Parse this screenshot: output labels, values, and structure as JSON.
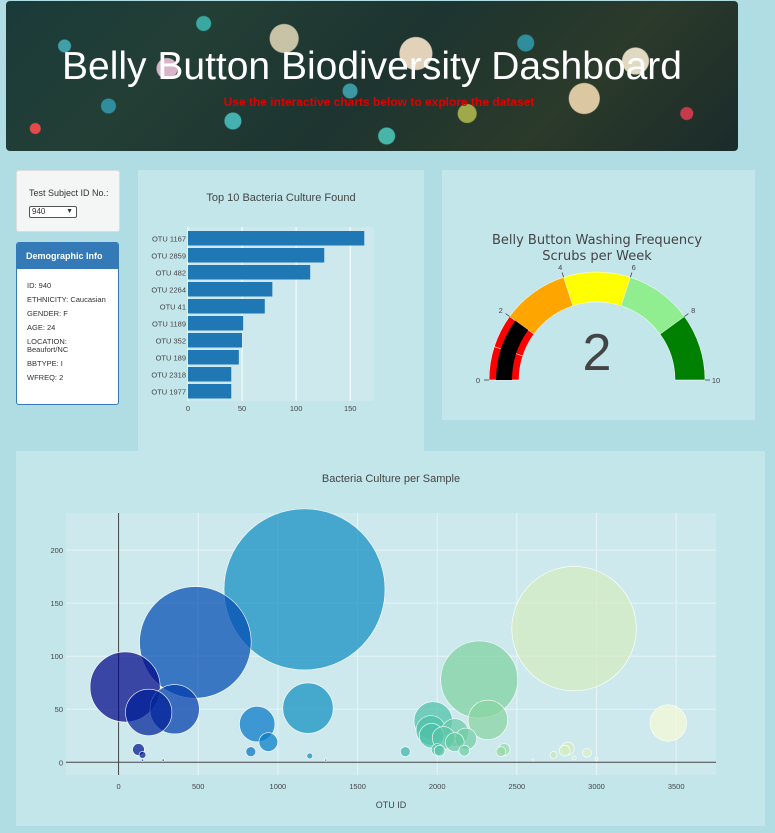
{
  "header": {
    "title": "Belly Button Biodiversity Dashboard",
    "subtitle": "Use the interactive charts below to explore the dataset"
  },
  "selector": {
    "label": "Test Subject ID No.:",
    "value": "940"
  },
  "demographic": {
    "heading": "Demographic Info",
    "lines": [
      "ID: 940",
      "ETHNICITY: Caucasian",
      "GENDER: F",
      "AGE: 24",
      "LOCATION: Beaufort/NC",
      "BBTYPE: I",
      "WFREQ: 2"
    ]
  },
  "chart_data": [
    {
      "type": "bar",
      "orientation": "horizontal",
      "title": "Top 10 Bacteria Culture Found",
      "categories": [
        "OTU 1167",
        "OTU 2859",
        "OTU 482",
        "OTU 2264",
        "OTU 41",
        "OTU 1189",
        "OTU 352",
        "OTU 189",
        "OTU 2318",
        "OTU 1977"
      ],
      "values": [
        163,
        126,
        113,
        78,
        71,
        51,
        50,
        47,
        40,
        40
      ],
      "xlim": [
        0,
        172
      ],
      "xticks": [
        0,
        50,
        100,
        150
      ],
      "color": "#1f77b4",
      "grid": true
    },
    {
      "type": "gauge",
      "title": "Belly Button Washing Frequency",
      "subtitle": "Scrubs per Week",
      "value": 2,
      "range": [
        0,
        10
      ],
      "ticks": [
        0,
        2,
        4,
        6,
        8,
        10
      ],
      "steps": [
        {
          "range": [
            0,
            1
          ],
          "color": "#ff0000"
        },
        {
          "range": [
            1,
            2
          ],
          "color": "#ff0000"
        },
        {
          "range": [
            2,
            4
          ],
          "color": "#ffa500"
        },
        {
          "range": [
            4,
            6
          ],
          "color": "#ffff00"
        },
        {
          "range": [
            6,
            8
          ],
          "color": "#90ee90"
        },
        {
          "range": [
            8,
            10
          ],
          "color": "#008000"
        }
      ],
      "bar_color": "#000000"
    },
    {
      "type": "scatter",
      "variant": "bubble",
      "title": "Bacteria Culture per Sample",
      "xlabel": "OTU ID",
      "ylabel": "",
      "xlim": [
        -330,
        3750
      ],
      "ylim": [
        -12,
        235
      ],
      "xticks": [
        0,
        500,
        1000,
        1500,
        2000,
        2500,
        3000,
        3500
      ],
      "yticks": [
        0,
        50,
        100,
        150,
        200
      ],
      "colorscale": "Earth",
      "points": [
        {
          "x": 41,
          "y": 71
        },
        {
          "x": 189,
          "y": 47
        },
        {
          "x": 352,
          "y": 50
        },
        {
          "x": 482,
          "y": 113
        },
        {
          "x": 870,
          "y": 36
        },
        {
          "x": 940,
          "y": 19
        },
        {
          "x": 1167,
          "y": 163
        },
        {
          "x": 1189,
          "y": 51
        },
        {
          "x": 1975,
          "y": 39
        },
        {
          "x": 1960,
          "y": 30
        },
        {
          "x": 1965,
          "y": 25
        },
        {
          "x": 2040,
          "y": 23
        },
        {
          "x": 2110,
          "y": 28
        },
        {
          "x": 2110,
          "y": 19
        },
        {
          "x": 2180,
          "y": 22
        },
        {
          "x": 2264,
          "y": 78
        },
        {
          "x": 2318,
          "y": 40
        },
        {
          "x": 2859,
          "y": 126
        },
        {
          "x": 3450,
          "y": 37
        },
        {
          "x": 125,
          "y": 12
        },
        {
          "x": 150,
          "y": 7
        },
        {
          "x": 830,
          "y": 10
        },
        {
          "x": 1200,
          "y": 6
        },
        {
          "x": 1800,
          "y": 10
        },
        {
          "x": 2000,
          "y": 12
        },
        {
          "x": 2015,
          "y": 11
        },
        {
          "x": 2170,
          "y": 11
        },
        {
          "x": 2420,
          "y": 12
        },
        {
          "x": 2400,
          "y": 10
        },
        {
          "x": 2820,
          "y": 13
        },
        {
          "x": 2940,
          "y": 9
        },
        {
          "x": 2800,
          "y": 11
        },
        {
          "x": 2730,
          "y": 7
        },
        {
          "x": 3000,
          "y": 3
        },
        {
          "x": 2860,
          "y": 4
        },
        {
          "x": 150,
          "y": 2
        },
        {
          "x": 280,
          "y": 2
        },
        {
          "x": 1300,
          "y": 2
        },
        {
          "x": 2600,
          "y": 2
        }
      ]
    }
  ]
}
